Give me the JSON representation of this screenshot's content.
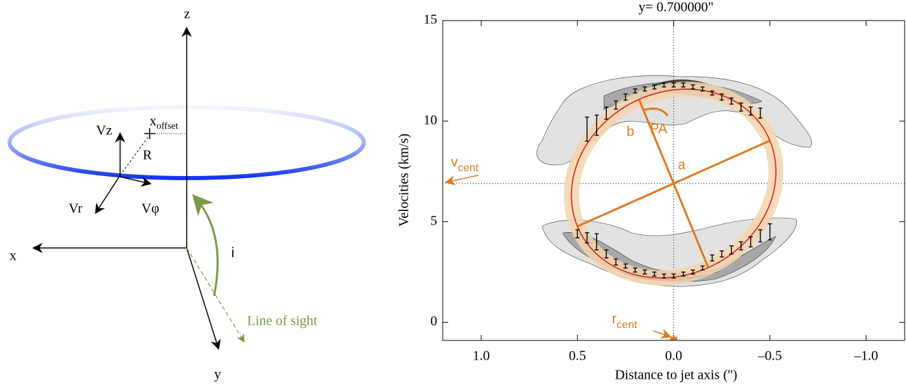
{
  "diagram": {
    "labels": {
      "z": "z",
      "x": "x",
      "y": "y",
      "vz": "Vz",
      "vr": "Vr",
      "vphi": "Vφ",
      "r": "R",
      "i": "i",
      "line_of_sight": "Line of sight"
    },
    "x_offset": [
      "x",
      "offset"
    ]
  },
  "chart_data": {
    "type": "errorbar",
    "title": "y= 0.700000\"",
    "x_label": "Distance to jet axis ('')",
    "y_label": "Velocities (km/s)",
    "xlim": [
      1.2,
      -1.2
    ],
    "ylim": [
      -0.9,
      15
    ],
    "xticks": [
      {
        "value": 1,
        "label": "1.0"
      },
      {
        "value": 0.5,
        "label": "0.5"
      },
      {
        "value": 0,
        "label": "0.0"
      },
      {
        "value": -0.5,
        "label": "–0.5"
      },
      {
        "value": -1,
        "label": "–1.0"
      }
    ],
    "yticks": [
      0,
      5,
      10,
      15
    ],
    "points": {
      "color": "#000000",
      "x": [
        0.45,
        0.4,
        0.35,
        0.3,
        0.25,
        0.2,
        0.15,
        0.1,
        0.05,
        0,
        -0.05,
        -0.1,
        -0.15,
        -0.2,
        -0.25,
        -0.3,
        -0.35,
        -0.4,
        -0.45,
        0.5,
        0.45,
        0.4,
        0.35,
        0.3,
        0.25,
        0.2,
        0.15,
        0.1,
        0.05,
        0,
        -0.05,
        -0.1,
        -0.15,
        -0.2,
        -0.25,
        -0.3,
        -0.35,
        -0.4,
        -0.45,
        -0.5
      ],
      "values": [
        9.6,
        9.8,
        10.4,
        10.8,
        11.2,
        11.5,
        11.6,
        11.7,
        11.8,
        11.8,
        11.8,
        11.7,
        11.6,
        11.4,
        11.2,
        11,
        10.7,
        10.5,
        10.4,
        4.4,
        4.2,
        4,
        3.4,
        3,
        2.8,
        2.6,
        2.5,
        2.4,
        2.3,
        2.3,
        2.4,
        2.5,
        2.7,
        3.2,
        3.4,
        3.6,
        3.8,
        4,
        4.3,
        4.5
      ],
      "errors": [
        0.6,
        0.5,
        0.3,
        0.2,
        0.15,
        0.1,
        0.1,
        0.1,
        0.1,
        0.1,
        0.1,
        0.1,
        0.1,
        0.1,
        0.15,
        0.15,
        0.2,
        0.2,
        0.25,
        0.2,
        0.25,
        0.4,
        0.2,
        0.15,
        0.1,
        0.1,
        0.1,
        0.1,
        0.1,
        0.1,
        0.1,
        0.1,
        0.1,
        0.15,
        0.15,
        0.2,
        0.2,
        0.25,
        0.3,
        0.4
      ]
    },
    "ellipse": {
      "center": [
        0,
        6.9
      ],
      "axis_a": [
        -0.5,
        2.13
      ],
      "axis_b": [
        0.18,
        4.18
      ],
      "color": "#e0201b",
      "band_color": "#f3d5ae",
      "axis_color": "#e07a20"
    },
    "annotations": {
      "a": "a",
      "b": "b",
      "pa": "PA",
      "v_cent": [
        "v",
        "cent"
      ],
      "r_cent": [
        "r",
        "cent"
      ]
    }
  }
}
